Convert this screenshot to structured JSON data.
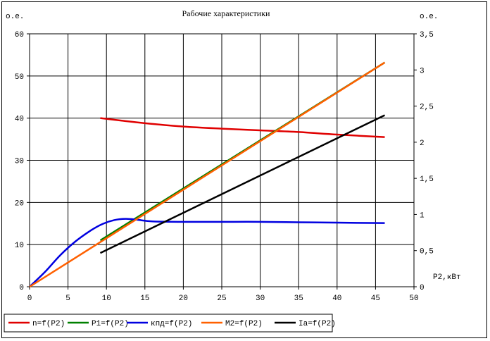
{
  "chart_data": {
    "type": "line",
    "title": "Рабочие характеристики",
    "left_axis_unit": "о.е.",
    "right_axis_unit": "о.е.",
    "xlabel": "P2,кВт",
    "xlim": [
      0,
      50
    ],
    "ylim_left": [
      0,
      60
    ],
    "ylim_right": [
      0,
      3.5
    ],
    "x_ticks": [
      "0",
      "5",
      "10",
      "15",
      "20",
      "25",
      "30",
      "35",
      "40",
      "45",
      "50"
    ],
    "y_left_ticks": [
      "0",
      "10",
      "20",
      "30",
      "40",
      "50",
      "60"
    ],
    "y_right_ticks": [
      "0",
      "0,5",
      "1",
      "1,5",
      "2",
      "2,5",
      "3",
      "3,5"
    ],
    "grid": true,
    "legend_position": "bottom-left",
    "series": [
      {
        "name": "n=f(P2)",
        "color": "#e00000",
        "axis": "left",
        "x": [
          9.2,
          12,
          15,
          20,
          25,
          30,
          35,
          40,
          46.2
        ],
        "y": [
          40,
          39.4,
          38.8,
          38.0,
          37.5,
          37.1,
          36.7,
          36.1,
          35.5
        ]
      },
      {
        "name": "P1=f(P2)",
        "color": "#008000",
        "axis": "left",
        "x": [
          9.2,
          46.2
        ],
        "y": [
          11,
          53.2
        ]
      },
      {
        "name": "кпд=f(P2)",
        "color": "#0000e0",
        "axis": "left",
        "x": [
          0,
          2,
          4,
          6,
          8,
          9.5,
          11,
          12.5,
          14,
          16,
          20,
          25,
          30,
          35,
          40,
          46.2
        ],
        "y": [
          0,
          3.5,
          7.5,
          10.8,
          13.4,
          14.9,
          15.8,
          16.1,
          15.9,
          15.5,
          15.4,
          15.4,
          15.4,
          15.3,
          15.2,
          15.1
        ]
      },
      {
        "name": "М2=f(P2)",
        "color": "#ff6000",
        "axis": "left",
        "x": [
          0,
          46.2
        ],
        "y": [
          0,
          53.2
        ]
      },
      {
        "name": "Ia=f(P2)",
        "color": "#000000",
        "axis": "left",
        "x": [
          9.2,
          46.2
        ],
        "y": [
          8,
          40.7
        ]
      }
    ]
  }
}
